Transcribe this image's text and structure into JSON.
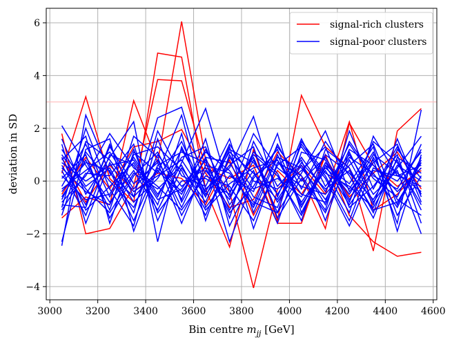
{
  "chart_data": {
    "type": "line",
    "title": "",
    "xlabel_prefix": "Bin centre ",
    "xlabel_var": "m",
    "xlabel_sub": "jj",
    "xlabel_suffix": " [GeV]",
    "ylabel": "deviation in SD",
    "xlim": [
      2985,
      4615
    ],
    "ylim": [
      -4.5,
      6.55
    ],
    "xticks": [
      3000,
      3200,
      3400,
      3600,
      3800,
      4000,
      4200,
      4400,
      4600
    ],
    "yticks": [
      -4,
      -2,
      0,
      2,
      4,
      6
    ],
    "grid": true,
    "legend_position": "top-right",
    "threshold_line": {
      "y": 3,
      "color": "#ffbbbb"
    },
    "colors": {
      "signal_rich": "#ff0000",
      "signal_poor": "#0000ff"
    },
    "legend": [
      {
        "label": "signal-rich clusters",
        "color": "#ff0000"
      },
      {
        "label": "signal-poor clusters",
        "color": "#0000ff"
      }
    ],
    "x": [
      3050,
      3150,
      3250,
      3350,
      3450,
      3550,
      3650,
      3750,
      3850,
      3950,
      4050,
      4150,
      4250,
      4350,
      4450,
      4550
    ],
    "series": [
      {
        "group": "signal-rich",
        "values": [
          -1.4,
          -0.6,
          -0.9,
          3.05,
          0.7,
          6.05,
          0.8,
          -0.4,
          -4.05,
          -0.3,
          0.6,
          -0.5,
          2.25,
          -1.1,
          -0.5,
          0.5
        ]
      },
      {
        "group": "signal-rich",
        "values": [
          0.3,
          3.2,
          0.1,
          -0.8,
          4.85,
          4.7,
          -0.3,
          -2.5,
          1.2,
          -1.5,
          3.25,
          1.3,
          0.5,
          -2.65,
          1.9,
          2.75
        ]
      },
      {
        "group": "signal-rich",
        "values": [
          1.8,
          -2.0,
          -1.8,
          -0.2,
          3.85,
          3.8,
          0.5,
          0.1,
          0.6,
          -1.6,
          -1.6,
          1.0,
          -1.3,
          -2.3,
          -2.85,
          -2.7
        ]
      },
      {
        "group": "signal-rich",
        "values": [
          -0.5,
          0.9,
          -0.3,
          1.3,
          1.5,
          1.95,
          0.3,
          -1.0,
          -0.7,
          1.1,
          0.2,
          -1.8,
          2.2,
          0.6,
          -0.2,
          0.4
        ]
      },
      {
        "group": "signal-rich",
        "values": [
          0.9,
          -0.8,
          0.6,
          -0.4,
          0.3,
          0.1,
          -0.9,
          0.8,
          -1.3,
          0.4,
          -0.5,
          0.9,
          -0.6,
          0.3,
          1.1,
          -0.3
        ]
      },
      {
        "group": "signal-poor",
        "values": [
          2.1,
          0.6,
          -0.8,
          0.4,
          -1.1,
          0.7,
          2.75,
          -0.4,
          0.9,
          -1.2,
          0.3,
          1.9,
          -0.4,
          0.8,
          -1.6,
          2.7
        ]
      },
      {
        "group": "signal-poor",
        "values": [
          -2.45,
          2.5,
          0.3,
          -0.6,
          2.4,
          2.8,
          -0.3,
          0.5,
          2.45,
          -0.6,
          1.6,
          -0.2,
          1.0,
          -0.5,
          0.4,
          -2.0
        ]
      },
      {
        "group": "signal-poor",
        "values": [
          -2.3,
          1.2,
          1.6,
          -1.9,
          0.5,
          -0.4,
          0.8,
          -2.3,
          0.1,
          1.2,
          -0.9,
          0.4,
          -1.2,
          1.7,
          0.2,
          0.6
        ]
      },
      {
        "group": "signal-poor",
        "values": [
          1.6,
          -0.5,
          0.9,
          2.25,
          -2.3,
          1.3,
          -0.6,
          1.3,
          -1.8,
          0.7,
          0.2,
          -1.1,
          1.9,
          -0.3,
          1.3,
          -0.5
        ]
      },
      {
        "group": "signal-poor",
        "values": [
          0.8,
          1.7,
          -1.6,
          1.1,
          0.3,
          2.5,
          -1.0,
          0.2,
          -0.4,
          1.8,
          -1.2,
          0.6,
          -0.1,
          1.3,
          -1.9,
          1.0
        ]
      },
      {
        "group": "signal-poor",
        "values": [
          -1.0,
          2.0,
          -0.3,
          -1.7,
          1.6,
          -0.8,
          0.9,
          -1.4,
          1.5,
          -0.2,
          0.8,
          -1.5,
          1.1,
          -0.8,
          0.5,
          1.7
        ]
      },
      {
        "group": "signal-poor",
        "values": [
          0.4,
          -1.3,
          1.0,
          0.6,
          -0.9,
          1.8,
          -1.5,
          1.0,
          -0.6,
          -1.0,
          1.4,
          0.2,
          -1.5,
          0.9,
          -0.7,
          -1.3
        ]
      },
      {
        "group": "signal-poor",
        "values": [
          -0.6,
          0.8,
          -1.1,
          1.7,
          0.9,
          -1.3,
          0.4,
          -0.7,
          1.1,
          0.3,
          -1.5,
          1.2,
          0.5,
          -1.2,
          1.2,
          0.1
        ]
      },
      {
        "group": "signal-poor",
        "values": [
          1.2,
          -0.2,
          0.5,
          -1.2,
          1.9,
          0.2,
          -0.2,
          1.6,
          -1.2,
          0.9,
          0.5,
          -0.7,
          0.9,
          0.3,
          -1.0,
          0.8
        ]
      },
      {
        "group": "signal-poor",
        "values": [
          -0.2,
          1.4,
          -0.6,
          0.9,
          -0.5,
          0.9,
          1.3,
          -0.9,
          0.4,
          -1.6,
          1.1,
          0.8,
          -0.8,
          1.5,
          0.7,
          -0.9
        ]
      },
      {
        "group": "signal-poor",
        "values": [
          0.6,
          -0.9,
          1.3,
          -0.1,
          0.7,
          -1.6,
          0.6,
          0.3,
          -0.9,
          1.4,
          -0.3,
          1.5,
          0.2,
          -1.4,
          0.9,
          0.3
        ]
      },
      {
        "group": "signal-poor",
        "values": [
          -1.1,
          0.3,
          0.2,
          1.4,
          -1.5,
          0.5,
          -0.8,
          1.2,
          0.7,
          -0.5,
          0.9,
          -0.4,
          1.4,
          0.1,
          -0.6,
          1.4
        ]
      },
      {
        "group": "signal-poor",
        "values": [
          0.1,
          1.0,
          -1.4,
          0.2,
          1.1,
          -0.7,
          1.6,
          -1.7,
          0.2,
          0.8,
          -0.8,
          0.5,
          -0.3,
          1.1,
          -1.3,
          0.2
        ]
      },
      {
        "group": "signal-poor",
        "values": [
          1.4,
          -1.6,
          0.7,
          -0.8,
          0.1,
          1.5,
          -0.5,
          0.6,
          1.3,
          -1.4,
          0.1,
          -1.2,
          0.8,
          -0.9,
          1.6,
          -0.6
        ]
      },
      {
        "group": "signal-poor",
        "values": [
          -0.8,
          0.2,
          1.8,
          0.5,
          -0.2,
          -1.1,
          0.2,
          -0.2,
          -1.5,
          0.6,
          1.3,
          0.1,
          -1.7,
          0.5,
          0.0,
          1.1
        ]
      },
      {
        "group": "signal-poor",
        "values": [
          0.5,
          -0.4,
          -0.9,
          1.0,
          1.3,
          0.4,
          -1.3,
          0.9,
          -0.3,
          0.1,
          -0.6,
          1.0,
          0.3,
          -0.7,
          0.8,
          -1.1
        ]
      },
      {
        "group": "signal-poor",
        "values": [
          -0.4,
          0.7,
          0.4,
          -1.5,
          0.6,
          1.1,
          0.7,
          -1.1,
          0.8,
          -0.8,
          0.6,
          -0.9,
          1.2,
          0.6,
          -0.4,
          0.5
        ]
      },
      {
        "group": "signal-poor",
        "values": [
          0.9,
          -1.1,
          -0.2,
          0.7,
          -0.7,
          -0.3,
          1.1,
          0.4,
          -1.0,
          1.0,
          -1.0,
          0.7,
          -0.5,
          1.0,
          0.3,
          -0.4
        ]
      },
      {
        "group": "signal-poor",
        "values": [
          -1.3,
          1.5,
          0.8,
          -0.4,
          0.2,
          0.8,
          -0.6,
          1.4,
          0.0,
          -0.3,
          0.4,
          1.3,
          -1.0,
          -0.2,
          1.0,
          -1.6
        ]
      },
      {
        "group": "signal-poor",
        "values": [
          0.2,
          -0.7,
          -0.5,
          1.2,
          -1.2,
          0.0,
          0.1,
          -0.5,
          1.8,
          0.5,
          -0.2,
          -0.5,
          0.6,
          1.4,
          -0.9,
          0.9
        ]
      },
      {
        "group": "signal-poor",
        "values": [
          -0.3,
          0.4,
          1.1,
          -0.3,
          0.8,
          -1.0,
          0.9,
          0.7,
          -0.8,
          -1.2,
          1.5,
          0.3,
          -0.2,
          -1.0,
          0.6,
          0.0
        ]
      },
      {
        "group": "signal-poor",
        "values": [
          1.0,
          -0.3,
          -1.2,
          0.3,
          -0.3,
          0.6,
          -1.1,
          -0.1,
          0.5,
          0.8,
          -0.5,
          -0.8,
          1.5,
          0.2,
          -0.3,
          1.2
        ]
      },
      {
        "group": "signal-poor",
        "values": [
          -0.7,
          1.1,
          0.0,
          -1.0,
          1.0,
          -0.2,
          0.5,
          -1.2,
          -0.2,
          1.3,
          0.0,
          0.9,
          -0.7,
          0.7,
          1.4,
          -0.8
        ]
      },
      {
        "group": "signal-poor",
        "values": [
          0.7,
          0.0,
          0.6,
          0.8,
          -0.6,
          1.2,
          -0.4,
          1.1,
          0.3,
          -0.7,
          0.7,
          -0.3,
          0.4,
          -1.1,
          -0.8,
          0.7
        ]
      },
      {
        "group": "signal-poor",
        "values": [
          -0.9,
          -1.0,
          1.4,
          -0.6,
          0.4,
          -0.5,
          1.2,
          -0.6,
          1.0,
          0.2,
          -1.3,
          0.6,
          -0.9,
          0.4,
          0.2,
          -0.2
        ]
      }
    ]
  }
}
